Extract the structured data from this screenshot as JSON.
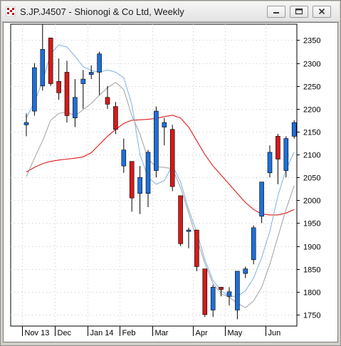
{
  "window": {
    "title": "S.JP.J4507 - Shionogi & Co Ltd, Weekly",
    "icons": [
      "chart-app-icon",
      "minimize-icon",
      "restore-icon",
      "close-icon"
    ]
  },
  "chart_data": {
    "type": "candlestick",
    "title": "S.JP.J4507 - Shionogi & Co Ltd, Weekly",
    "xlabel": "",
    "ylabel": "",
    "ylim": [
      1725,
      2385
    ],
    "y_ticks": [
      1750,
      1800,
      1850,
      1900,
      1950,
      2000,
      2050,
      2100,
      2150,
      2200,
      2250,
      2300,
      2350
    ],
    "grid": true,
    "x_tick_labels": [
      {
        "label": "Nov 13",
        "index": 0
      },
      {
        "label": "Dec",
        "index": 4
      },
      {
        "label": "Jan 14",
        "index": 8
      },
      {
        "label": "Feb",
        "index": 12
      },
      {
        "label": "Mar",
        "index": 16
      },
      {
        "label": "Apr",
        "index": 21
      },
      {
        "label": "May",
        "index": 25
      },
      {
        "label": "Jun",
        "index": 30
      }
    ],
    "up_color": "#1f6fd6",
    "down_color": "#d41a1a",
    "candles": [
      {
        "o": 2165,
        "h": 2190,
        "l": 2140,
        "c": 2170
      },
      {
        "o": 2195,
        "h": 2300,
        "l": 2185,
        "c": 2290
      },
      {
        "o": 2250,
        "h": 2385,
        "l": 2240,
        "c": 2330
      },
      {
        "o": 2355,
        "h": 2355,
        "l": 2250,
        "c": 2255
      },
      {
        "o": 2260,
        "h": 2310,
        "l": 2220,
        "c": 2235
      },
      {
        "o": 2280,
        "h": 2305,
        "l": 2170,
        "c": 2185
      },
      {
        "o": 2180,
        "h": 2265,
        "l": 2160,
        "c": 2225
      },
      {
        "o": 2255,
        "h": 2285,
        "l": 2200,
        "c": 2265
      },
      {
        "o": 2275,
        "h": 2295,
        "l": 2265,
        "c": 2280
      },
      {
        "o": 2280,
        "h": 2325,
        "l": 2230,
        "c": 2320
      },
      {
        "o": 2225,
        "h": 2250,
        "l": 2200,
        "c": 2210
      },
      {
        "o": 2205,
        "h": 2215,
        "l": 2145,
        "c": 2155
      },
      {
        "o": 2075,
        "h": 2135,
        "l": 2060,
        "c": 2110
      },
      {
        "o": 2085,
        "h": 2085,
        "l": 1975,
        "c": 2005
      },
      {
        "o": 2015,
        "h": 2075,
        "l": 1970,
        "c": 2050
      },
      {
        "o": 2015,
        "h": 2110,
        "l": 1985,
        "c": 2105
      },
      {
        "o": 2065,
        "h": 2205,
        "l": 2050,
        "c": 2195
      },
      {
        "o": 2160,
        "h": 2180,
        "l": 2120,
        "c": 2170
      },
      {
        "o": 2155,
        "h": 2165,
        "l": 2020,
        "c": 2030
      },
      {
        "o": 2010,
        "h": 2010,
        "l": 1900,
        "c": 1905
      },
      {
        "o": 1935,
        "h": 1940,
        "l": 1895,
        "c": 1935
      },
      {
        "o": 1935,
        "h": 1935,
        "l": 1845,
        "c": 1855
      },
      {
        "o": 1850,
        "h": 1850,
        "l": 1745,
        "c": 1750
      },
      {
        "o": 1760,
        "h": 1815,
        "l": 1745,
        "c": 1810
      },
      {
        "o": 1810,
        "h": 1810,
        "l": 1790,
        "c": 1805
      },
      {
        "o": 1790,
        "h": 1810,
        "l": 1770,
        "c": 1800
      },
      {
        "o": 1760,
        "h": 1845,
        "l": 1740,
        "c": 1845
      },
      {
        "o": 1840,
        "h": 1855,
        "l": 1830,
        "c": 1850
      },
      {
        "o": 1870,
        "h": 1945,
        "l": 1860,
        "c": 1940
      },
      {
        "o": 1965,
        "h": 2040,
        "l": 1950,
        "c": 2040
      },
      {
        "o": 2060,
        "h": 2120,
        "l": 2050,
        "c": 2105
      },
      {
        "o": 2140,
        "h": 2145,
        "l": 2035,
        "c": 2090
      },
      {
        "o": 2065,
        "h": 2140,
        "l": 2050,
        "c": 2135
      },
      {
        "o": 2140,
        "h": 2175,
        "l": 2135,
        "c": 2170
      }
    ],
    "series": [
      {
        "color": "#e21a1a",
        "values": [
          2062,
          2072,
          2080,
          2085,
          2088,
          2090,
          2092,
          2095,
          2104,
          2122,
          2140,
          2155,
          2168,
          2175,
          2176,
          2177,
          2179,
          2183,
          2186,
          2180,
          2160,
          2130,
          2100,
          2075,
          2055,
          2035,
          2015,
          1995,
          1980,
          1970,
          1968,
          1968,
          1972,
          1980
        ]
      },
      {
        "color": "#7fb0e0",
        "values": [
          2180,
          2215,
          2260,
          2320,
          2340,
          2335,
          2315,
          2292,
          2284,
          2280,
          2285,
          2280,
          2268,
          2210,
          2100,
          2050,
          2035,
          2043,
          2076,
          2040,
          1980,
          1930,
          1870,
          1825,
          1802,
          1790,
          1790,
          1802,
          1830,
          1875,
          1932,
          2010,
          2067,
          2105
        ]
      },
      {
        "color": "#a0a0a0",
        "values": [
          2052,
          2092,
          2130,
          2175,
          2190,
          2193,
          2185,
          2198,
          2212,
          2230,
          2246,
          2258,
          2242,
          2185,
          2145,
          2090,
          2073,
          2072,
          2069,
          2028,
          1972,
          1915,
          1862,
          1818,
          1796,
          1788,
          1775,
          1765,
          1780,
          1810,
          1860,
          1920,
          1980,
          2032
        ]
      }
    ]
  }
}
